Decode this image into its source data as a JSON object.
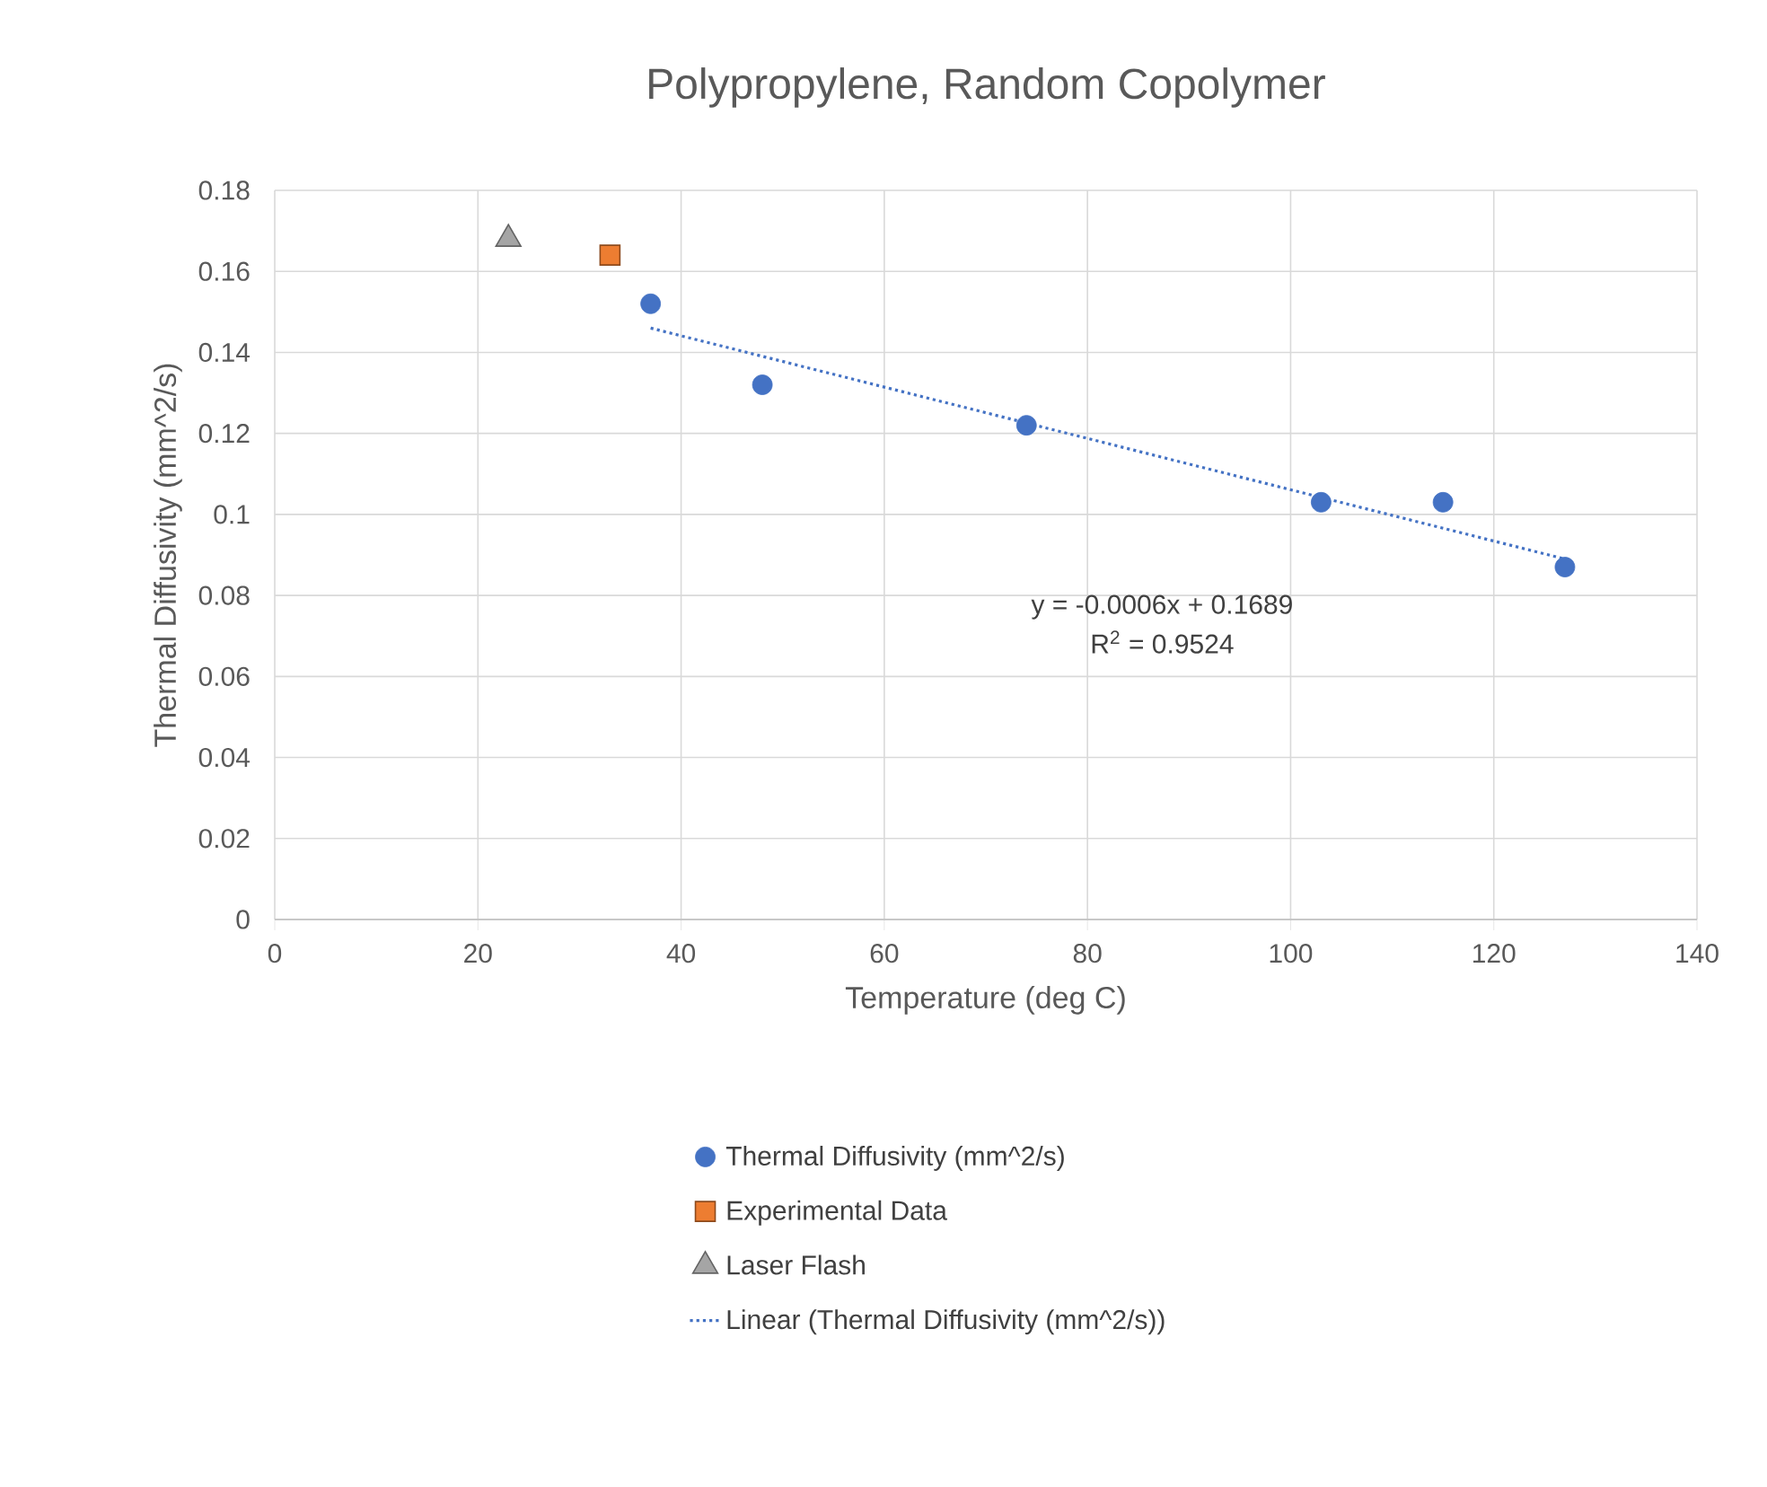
{
  "chart_data": {
    "type": "scatter",
    "title": "Polypropylene, Random Copolymer",
    "xlabel": "Temperature (deg C)",
    "ylabel": "Thermal Diffusivity (mm^2/s)",
    "xlim": [
      0,
      140
    ],
    "ylim": [
      0,
      0.18
    ],
    "xticks": [
      0,
      20,
      40,
      60,
      80,
      100,
      120,
      140
    ],
    "yticks": [
      0,
      0.02,
      0.04,
      0.06,
      0.08,
      0.1,
      0.12,
      0.14,
      0.16,
      0.18
    ],
    "grid": true,
    "legend": "bottom",
    "annotations": [
      "y = -0.0006x + 0.1689",
      "R$^{2}$ = 0.9524"
    ],
    "series": [
      {
        "name": "Thermal Diffusivity (mm^2/s)",
        "type": "scatter",
        "marker": "circle",
        "color": "#4472c4",
        "x": [
          37,
          48,
          74,
          103,
          115,
          127
        ],
        "values": [
          0.152,
          0.132,
          0.122,
          0.103,
          0.103,
          0.087
        ]
      },
      {
        "name": "Experimental Data",
        "type": "scatter",
        "marker": "square",
        "color": "#ed7d31",
        "x": [
          33
        ],
        "values": [
          0.164
        ]
      },
      {
        "name": "Laser Flash",
        "type": "scatter",
        "marker": "triangle",
        "color": "#a5a5a5",
        "x": [
          23
        ],
        "values": [
          0.168
        ]
      },
      {
        "name": "Linear (Thermal Diffusivity (mm^2/s))",
        "type": "line",
        "marker": "none",
        "line_style": "dotted",
        "color": "#4472c4",
        "x": [
          37,
          127
        ],
        "values": [
          0.146,
          0.089
        ]
      }
    ]
  }
}
